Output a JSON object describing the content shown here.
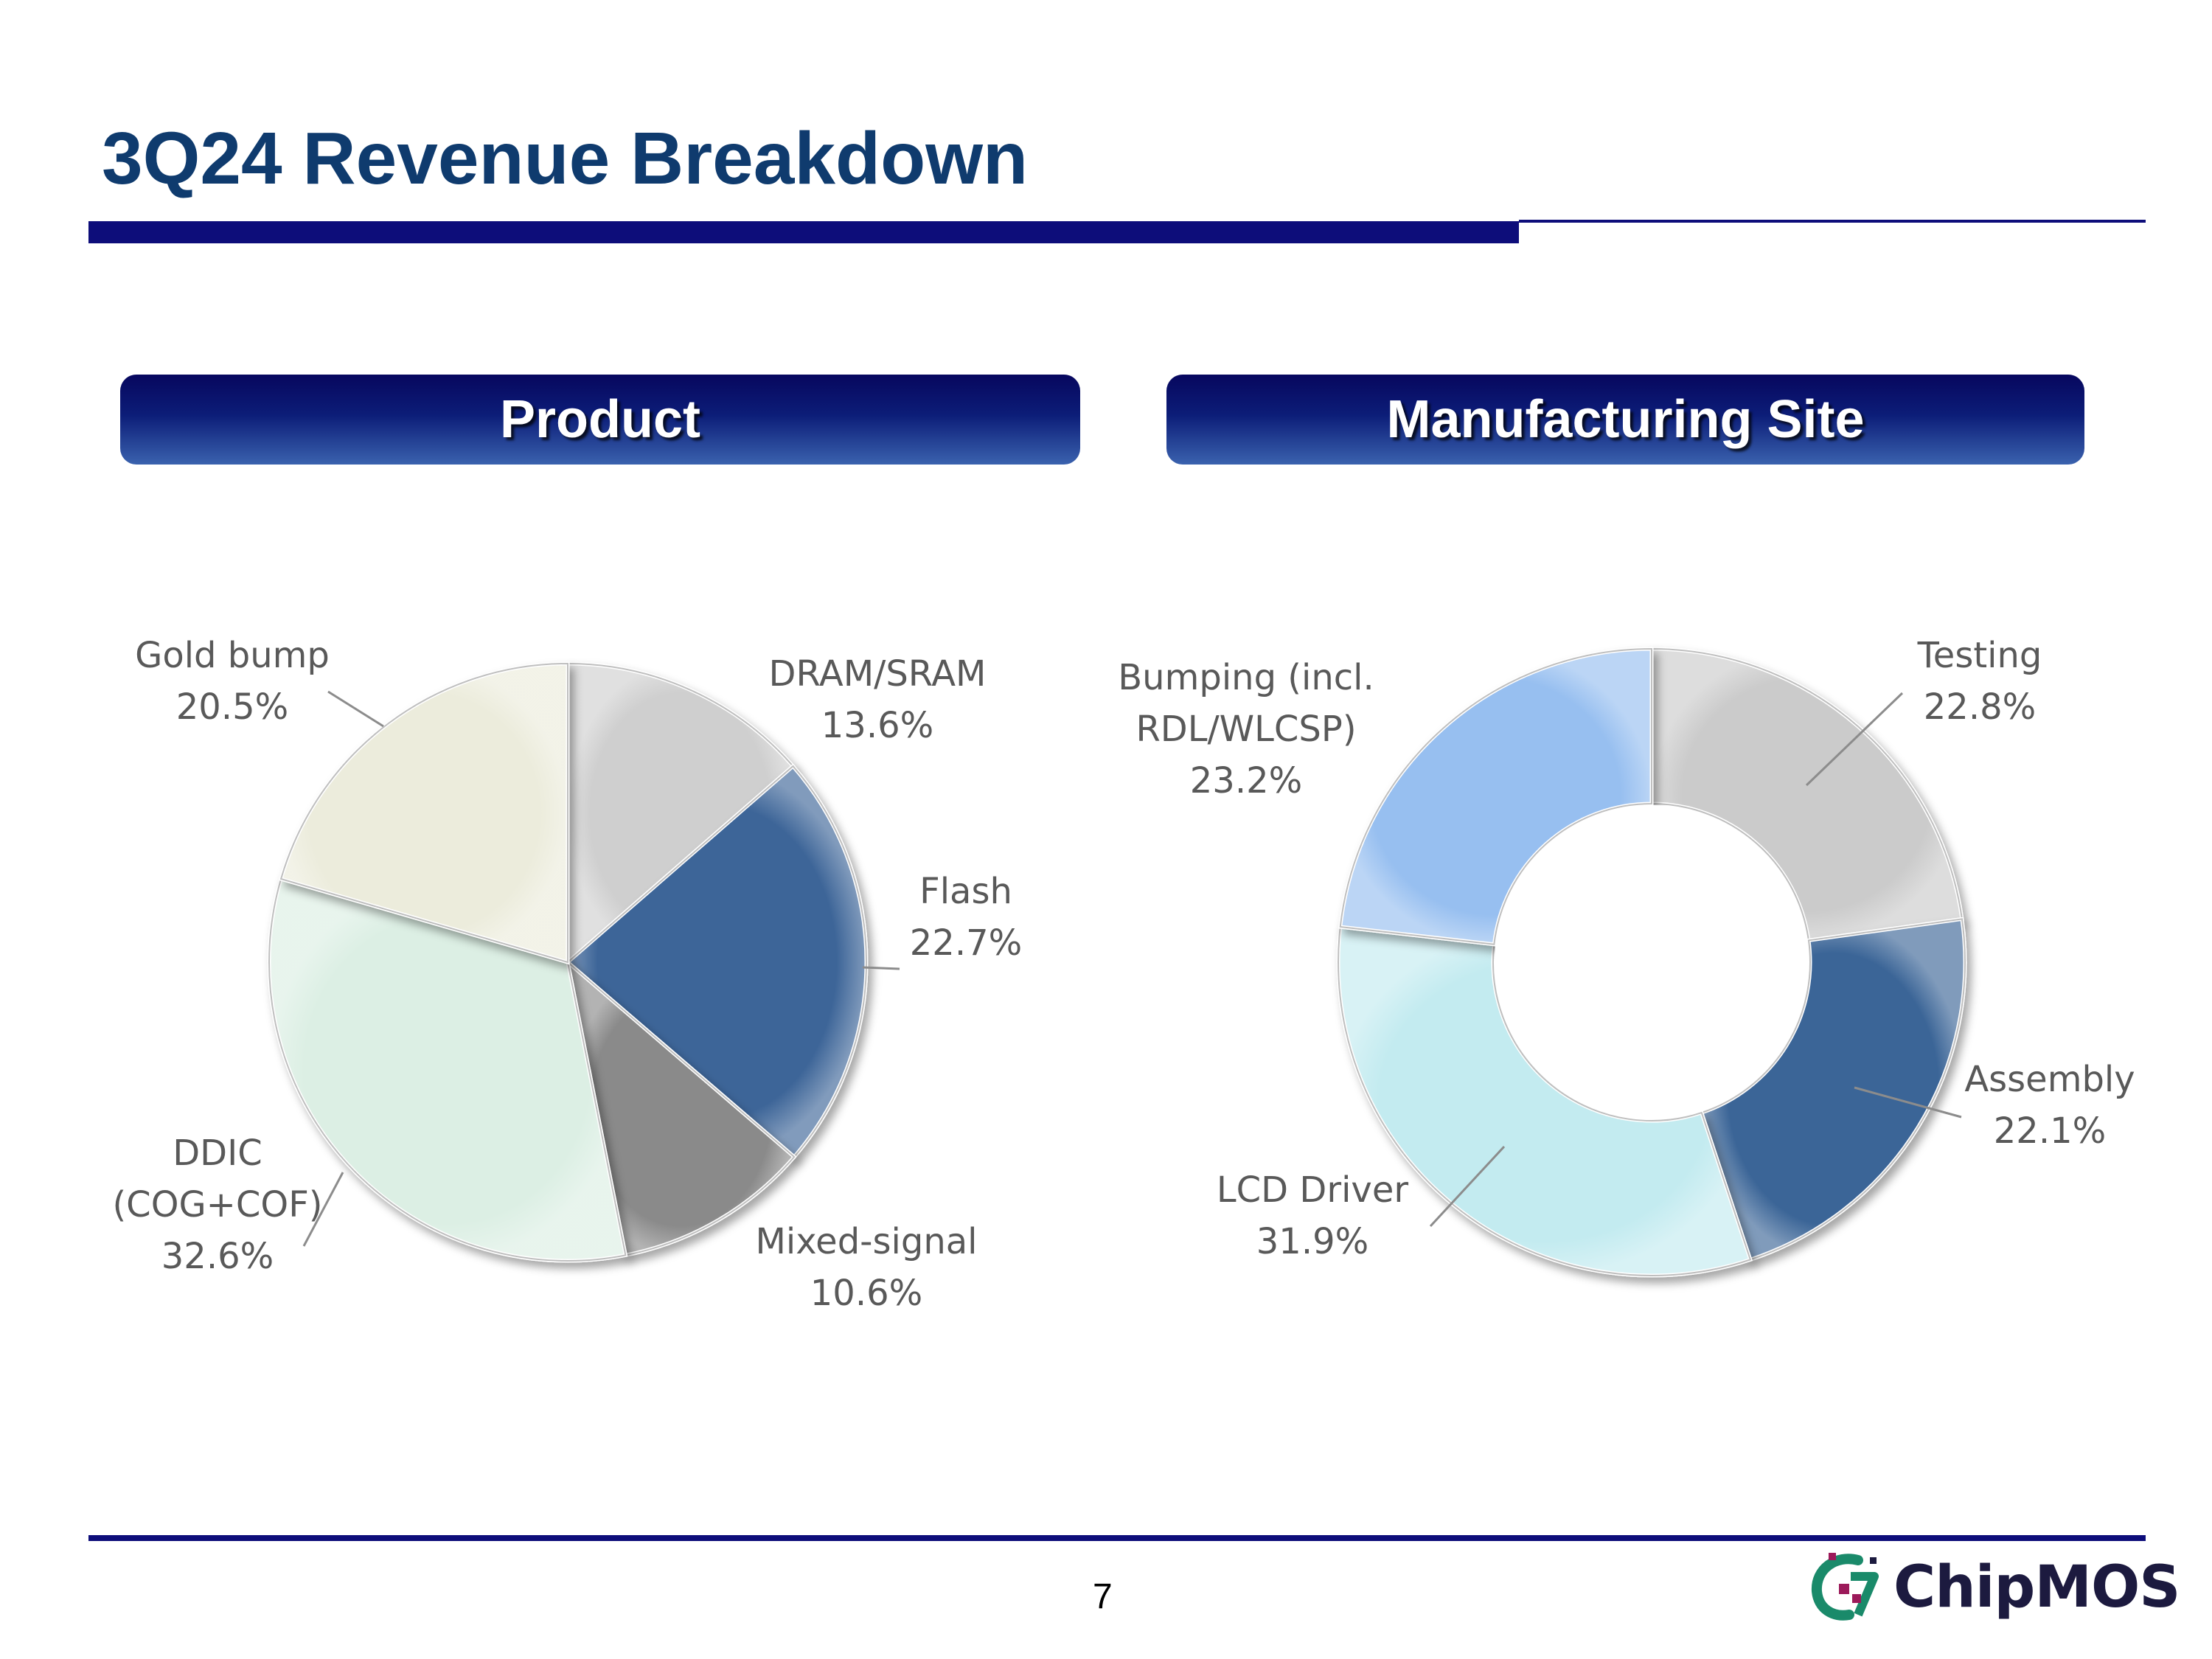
{
  "title": "3Q24 Revenue Breakdown",
  "sections": {
    "product": "Product",
    "site": "Manufacturing Site"
  },
  "chart_data": [
    {
      "type": "pie",
      "title": "Product",
      "slices": [
        {
          "label_lines": [
            "DRAM/SRAM",
            "13.6%"
          ],
          "value": 13.6,
          "color": "#cfcfcf"
        },
        {
          "label_lines": [
            "Flash",
            "22.7%"
          ],
          "value": 22.7,
          "color": "#3c6598"
        },
        {
          "label_lines": [
            "Mixed-signal",
            "10.6%"
          ],
          "value": 10.6,
          "color": "#8a8a8a"
        },
        {
          "label_lines": [
            "DDIC",
            "(COG+COF)",
            "32.6%"
          ],
          "value": 32.6,
          "color": "#dcefe4"
        },
        {
          "label_lines": [
            "Gold bump",
            "20.5%"
          ],
          "value": 20.5,
          "color": "#ececdc"
        }
      ]
    },
    {
      "type": "pie",
      "title": "Manufacturing Site",
      "donut": true,
      "slices": [
        {
          "label_lines": [
            "Testing",
            "22.8%"
          ],
          "value": 22.8,
          "color": "#cbcbcb"
        },
        {
          "label_lines": [
            "Assembly",
            "22.1%"
          ],
          "value": 22.1,
          "color": "#3b6597"
        },
        {
          "label_lines": [
            "LCD Driver",
            "31.9%"
          ],
          "value": 31.9,
          "color": "#c3ebf0"
        },
        {
          "label_lines": [
            "Bumping (incl.",
            "RDL/WLCSP)",
            "23.2%"
          ],
          "value": 23.2,
          "color": "#97bff0"
        }
      ]
    }
  ],
  "page_number": "7",
  "logo": {
    "text": "ChipMOS"
  }
}
